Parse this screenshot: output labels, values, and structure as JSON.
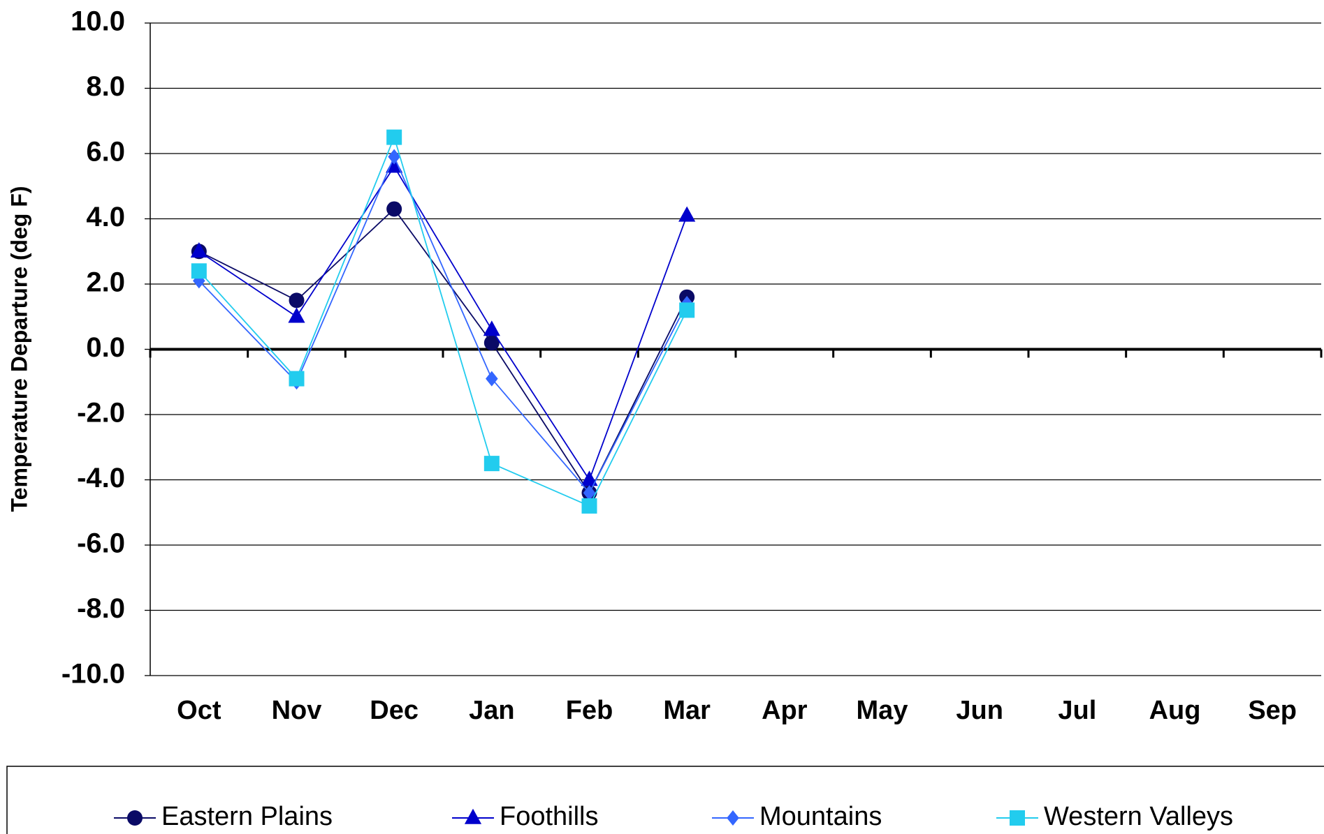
{
  "chart_data": {
    "type": "line",
    "y_label": "Temperature Departure (deg F)",
    "categories": [
      "Oct",
      "Nov",
      "Dec",
      "Jan",
      "Feb",
      "Mar",
      "Apr",
      "May",
      "Jun",
      "Jul",
      "Aug",
      "Sep"
    ],
    "series": [
      {
        "name": "Eastern Plains",
        "color": "#0a0a66",
        "marker": "circle",
        "values": [
          3.0,
          1.5,
          4.3,
          0.2,
          -4.4,
          1.6,
          null,
          null,
          null,
          null,
          null,
          null
        ]
      },
      {
        "name": "Foothills",
        "color": "#0000cc",
        "marker": "triangle",
        "values": [
          3.0,
          1.0,
          5.6,
          0.6,
          -4.0,
          4.1,
          null,
          null,
          null,
          null,
          null,
          null
        ]
      },
      {
        "name": "Mountains",
        "color": "#3366ff",
        "marker": "diamond",
        "values": [
          2.1,
          -1.0,
          5.9,
          -0.9,
          -4.4,
          1.4,
          null,
          null,
          null,
          null,
          null,
          null
        ]
      },
      {
        "name": "Western Valleys",
        "color": "#22ccee",
        "marker": "square",
        "values": [
          2.4,
          -0.9,
          6.5,
          -3.5,
          -4.8,
          1.2,
          null,
          null,
          null,
          null,
          null,
          null
        ]
      }
    ],
    "ylim": [
      -10,
      10
    ],
    "yticks": [
      {
        "value": -10,
        "label": "-10.0"
      },
      {
        "value": -8,
        "label": "-8.0"
      },
      {
        "value": -6,
        "label": "-6.0"
      },
      {
        "value": -4,
        "label": "-4.0"
      },
      {
        "value": -2,
        "label": "-2.0"
      },
      {
        "value": 0,
        "label": "0.0"
      },
      {
        "value": 2,
        "label": "2.0"
      },
      {
        "value": 4,
        "label": "4.0"
      },
      {
        "value": 6,
        "label": "6.0"
      },
      {
        "value": 8,
        "label": "8.0"
      },
      {
        "value": 10,
        "label": "10.0"
      }
    ],
    "grid": true,
    "legend": "bottom"
  }
}
